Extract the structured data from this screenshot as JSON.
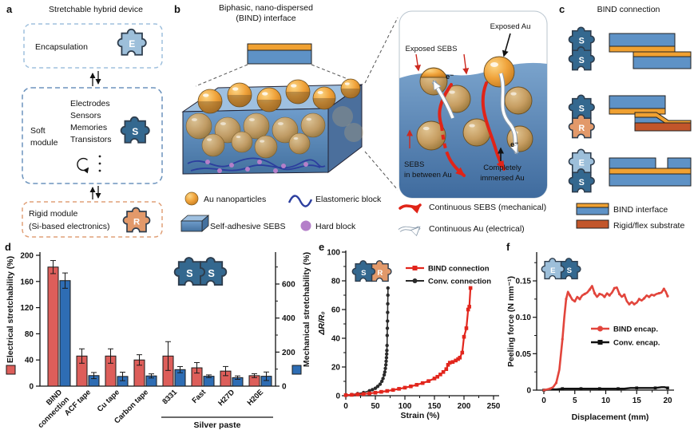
{
  "colors": {
    "bar_red": "#dd5e5a",
    "bar_blue": "#2e6db4",
    "line_red": "#e2261d",
    "gold": "#f0a33b",
    "tan": "#c69d61",
    "sebs_blue": "#5e92c6",
    "interface_orange": "#f0a132",
    "rigid_substrate": "#c2562b",
    "puzzle_dark": "#34688f",
    "puzzle_light": "#9dbfda",
    "puzzle_orange": "#e2996a",
    "hard_block_purple": "#b47fc9",
    "elastomer_blue": "#2c3e9e"
  },
  "panel_a": {
    "label": "a",
    "title": "Stretchable hybrid device",
    "encapsulation": "Encapsulation",
    "soft_line1": "Soft",
    "soft_line2": "module",
    "components": [
      "Electrodes",
      "Sensors",
      "Memories",
      "Transistors"
    ],
    "rigid_line1": "Rigid module",
    "rigid_line2": "(Si-based electronics)",
    "letters": {
      "E": "E",
      "S": "S",
      "R": "R"
    }
  },
  "panel_b": {
    "label": "b",
    "title_line1": "Biphasic, nano-dispersed",
    "title_line2": "(BIND) interface",
    "legend": {
      "au": "Au nanoparticles",
      "elastomer": "Elastomeric block",
      "sebs": "Self-adhesive SEBS",
      "hard": "Hard block"
    },
    "inset": {
      "exposed_sebs": "Exposed SEBS",
      "exposed_au": "Exposed Au",
      "electron": "e⁻",
      "sebs_between_1": "SEBS",
      "sebs_between_2": "in between Au",
      "immersed_1": "Completely",
      "immersed_2": "immersed Au",
      "legend_sebs": "Continuous SEBS (mechanical)",
      "legend_au": "Continuous Au (electrical)"
    }
  },
  "panel_c": {
    "label": "c",
    "title": "BIND connection",
    "pairs": [
      [
        "S",
        "S"
      ],
      [
        "S",
        "R"
      ],
      [
        "E",
        "S"
      ]
    ],
    "legend": {
      "bind": "BIND interface",
      "rigid": "Rigid/flex substrate"
    }
  },
  "chart_data": [
    {
      "id": "d",
      "type": "bar",
      "panel_label": "d",
      "categories": [
        "BIND\nconnection",
        "ACF tape",
        "Cu tape",
        "Carbon tape",
        "8331",
        "Fast",
        "H27D",
        "H20E"
      ],
      "series": [
        {
          "name": "Electrical stretchability (%)",
          "axis": "left",
          "color": "#dd5e5a",
          "values": [
            182,
            46,
            46,
            40,
            46,
            28,
            23,
            16
          ],
          "errors": [
            10,
            11,
            11,
            8,
            22,
            8,
            7,
            3
          ]
        },
        {
          "name": "Mechanical stretchability (%)",
          "axis": "right",
          "color": "#2e6db4",
          "values": [
            620,
            62,
            57,
            60,
            97,
            58,
            50,
            58
          ],
          "errors": [
            45,
            18,
            25,
            12,
            18,
            8,
            10,
            25
          ]
        }
      ],
      "left_axis": {
        "ticks": [
          0,
          40,
          80,
          120,
          160,
          200
        ],
        "max": 205
      },
      "right_axis": {
        "ticks": [
          0,
          200,
          400,
          600
        ],
        "minor_ticks": [
          100,
          300,
          500,
          700
        ],
        "max": 770
      },
      "group_bracket": {
        "text": "Silver paste",
        "from": 4,
        "to": 7
      },
      "inset_puzzle": [
        "S",
        "S"
      ]
    },
    {
      "id": "e",
      "type": "line",
      "panel_label": "e",
      "xlabel": "Strain (%)",
      "ylabel": "ΔR/R₀",
      "xticks": [
        0,
        50,
        100,
        150,
        200,
        250
      ],
      "xminor": [
        25,
        75,
        125,
        175,
        225
      ],
      "yticks": [
        0,
        20,
        40,
        60,
        80,
        100
      ],
      "yminor": [
        10,
        30,
        50,
        70,
        90
      ],
      "series": [
        {
          "name": "BIND connection",
          "color": "#e2261d",
          "marker": "square",
          "points": [
            [
              0,
              0.4
            ],
            [
              10,
              0.6
            ],
            [
              20,
              0.9
            ],
            [
              30,
              1.2
            ],
            [
              40,
              1.6
            ],
            [
              50,
              2.1
            ],
            [
              60,
              2.7
            ],
            [
              70,
              3.3
            ],
            [
              80,
              4
            ],
            [
              90,
              4.8
            ],
            [
              100,
              5.6
            ],
            [
              110,
              6.5
            ],
            [
              120,
              7.6
            ],
            [
              130,
              8.8
            ],
            [
              140,
              10.2
            ],
            [
              150,
              12
            ],
            [
              155,
              13.2
            ],
            [
              160,
              14.8
            ],
            [
              165,
              16.5
            ],
            [
              170,
              18.5
            ],
            [
              173,
              21.5
            ],
            [
              176,
              23
            ],
            [
              181,
              23.5
            ],
            [
              186,
              24.5
            ],
            [
              190,
              25.5
            ],
            [
              193,
              26.5
            ],
            [
              197,
              30
            ],
            [
              200,
              41
            ],
            [
              204,
              47
            ],
            [
              207,
              60
            ],
            [
              209,
              62
            ],
            [
              211,
              75
            ]
          ]
        },
        {
          "name": "Conv. connection",
          "color": "#2a2a2a",
          "marker": "circle",
          "points": [
            [
              0,
              0.4
            ],
            [
              10,
              0.8
            ],
            [
              20,
              1.4
            ],
            [
              30,
              2.2
            ],
            [
              40,
              3.4
            ],
            [
              45,
              4.2
            ],
            [
              50,
              5.2
            ],
            [
              54,
              6.5
            ],
            [
              58,
              8
            ],
            [
              61,
              10
            ],
            [
              63,
              12
            ],
            [
              65,
              14.5
            ],
            [
              66,
              16.5
            ],
            [
              67,
              19
            ],
            [
              67.8,
              21.5
            ],
            [
              68.3,
              24
            ],
            [
              68.8,
              26.5
            ],
            [
              69.2,
              29
            ],
            [
              69.5,
              31.5
            ],
            [
              69.8,
              35
            ],
            [
              70,
              42
            ],
            [
              70.3,
              47
            ],
            [
              70.6,
              52
            ],
            [
              70.8,
              58
            ],
            [
              71,
              64
            ],
            [
              71.2,
              70
            ],
            [
              71.3,
              75
            ]
          ]
        }
      ],
      "inset_puzzle": [
        "S",
        "R"
      ]
    },
    {
      "id": "f",
      "type": "line",
      "panel_label": "f",
      "xlabel": "Displacement (mm)",
      "ylabel": "Peeling force (N mm⁻¹)",
      "xticks": [
        0,
        5,
        10,
        15,
        20
      ],
      "xminor": [
        2.5,
        7.5,
        12.5,
        17.5
      ],
      "yticks": [
        0,
        0.05,
        0.1,
        0.15
      ],
      "ytick_labels": [
        "0",
        "0.05",
        "0.10",
        "0.15"
      ],
      "yminor": [
        0.025,
        0.075,
        0.125,
        0.175
      ],
      "series": [
        {
          "name": "BIND encap.",
          "color": "#e2453c",
          "marker": "circle",
          "points": [
            [
              0,
              0
            ],
            [
              0.5,
              0.001
            ],
            [
              1,
              0.002
            ],
            [
              1.5,
              0.004
            ],
            [
              2,
              0.01
            ],
            [
              2.5,
              0.028
            ],
            [
              3,
              0.07
            ],
            [
              3.3,
              0.1
            ],
            [
              3.6,
              0.125
            ],
            [
              3.9,
              0.135
            ],
            [
              4.2,
              0.13
            ],
            [
              4.6,
              0.124
            ],
            [
              5,
              0.122
            ],
            [
              5.4,
              0.128
            ],
            [
              5.8,
              0.125
            ],
            [
              6.2,
              0.13
            ],
            [
              6.6,
              0.132
            ],
            [
              7,
              0.134
            ],
            [
              7.4,
              0.138
            ],
            [
              7.8,
              0.143
            ],
            [
              8.2,
              0.133
            ],
            [
              8.6,
              0.128
            ],
            [
              9,
              0.132
            ],
            [
              9.4,
              0.131
            ],
            [
              9.8,
              0.128
            ],
            [
              10.2,
              0.133
            ],
            [
              10.6,
              0.13
            ],
            [
              11,
              0.134
            ],
            [
              11.4,
              0.14
            ],
            [
              11.8,
              0.141
            ],
            [
              12.2,
              0.132
            ],
            [
              12.6,
              0.128
            ],
            [
              13,
              0.131
            ],
            [
              13.4,
              0.122
            ],
            [
              13.8,
              0.118
            ],
            [
              14.2,
              0.121
            ],
            [
              14.6,
              0.118
            ],
            [
              15,
              0.12
            ],
            [
              15.4,
              0.125
            ],
            [
              15.8,
              0.123
            ],
            [
              16.2,
              0.126
            ],
            [
              16.6,
              0.13
            ],
            [
              17,
              0.128
            ],
            [
              17.4,
              0.131
            ],
            [
              17.8,
              0.13
            ],
            [
              18.2,
              0.132
            ],
            [
              18.6,
              0.133
            ],
            [
              19,
              0.134
            ],
            [
              19.4,
              0.139
            ],
            [
              19.7,
              0.135
            ],
            [
              20,
              0.129
            ]
          ]
        },
        {
          "name": "Conv. encap.",
          "color": "#111111",
          "marker": "square",
          "points": [
            [
              0,
              0
            ],
            [
              1,
              0.001
            ],
            [
              2,
              0.001
            ],
            [
              3,
              0.002
            ],
            [
              4,
              0.002
            ],
            [
              5,
              0.002
            ],
            [
              6,
              0.002
            ],
            [
              7,
              0.002
            ],
            [
              8,
              0.002
            ],
            [
              9,
              0.002
            ],
            [
              10,
              0.002
            ],
            [
              11,
              0.002
            ],
            [
              12,
              0.002
            ],
            [
              13,
              0.002
            ],
            [
              14,
              0.003
            ],
            [
              15,
              0.003
            ],
            [
              16,
              0.003
            ],
            [
              17,
              0.003
            ],
            [
              18,
              0.003
            ],
            [
              19,
              0.004
            ],
            [
              19.5,
              0.004
            ],
            [
              20,
              0.003
            ]
          ]
        }
      ],
      "inset_puzzle": [
        "E",
        "S"
      ]
    }
  ]
}
